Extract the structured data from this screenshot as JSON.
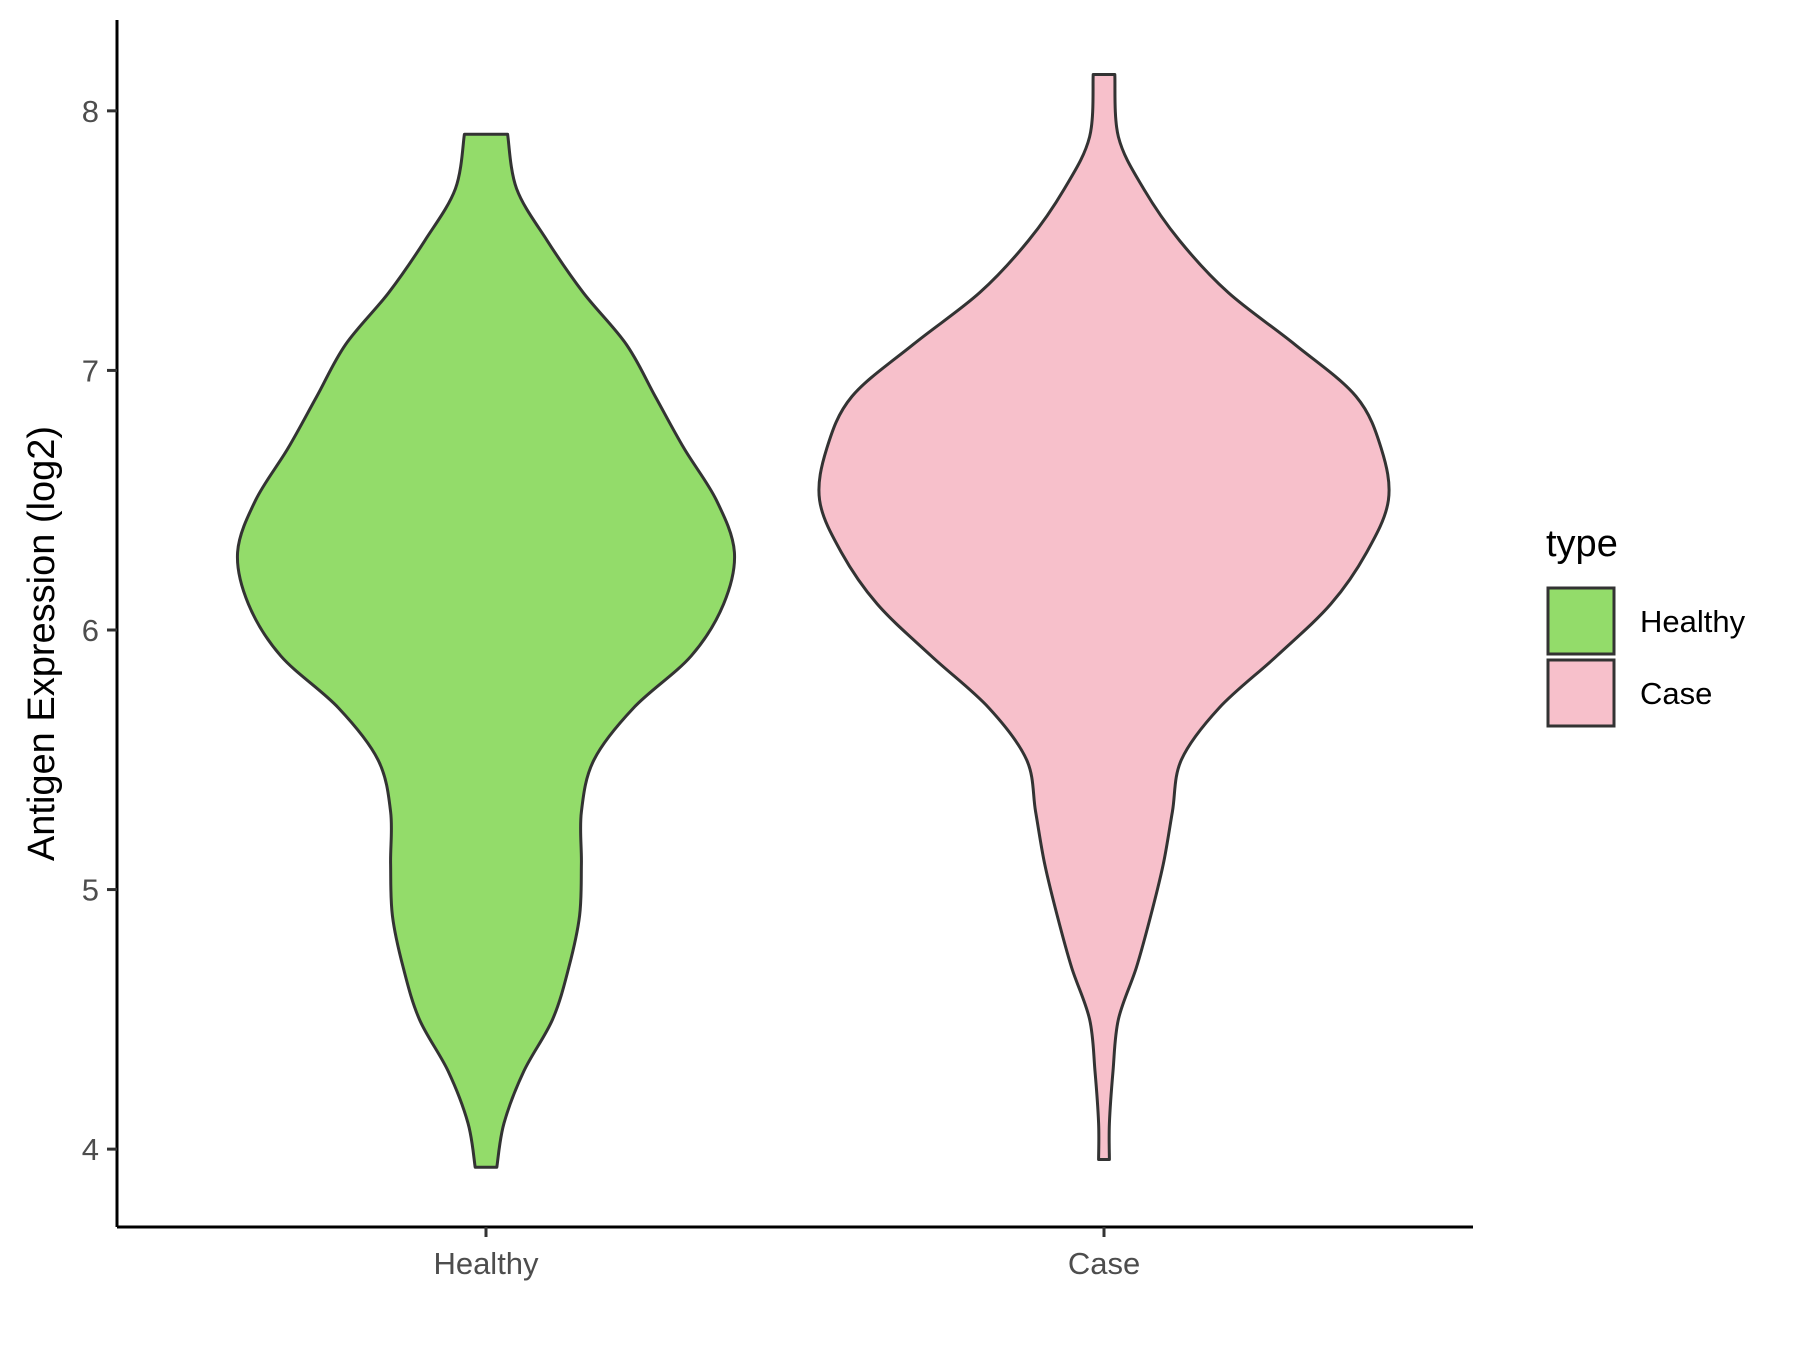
{
  "chart_data": {
    "type": "violin",
    "title": "",
    "xlabel": "",
    "ylabel": "Antigen Expression (log2)",
    "ylim": [
      3.7,
      8.35
    ],
    "yticks": [
      4,
      5,
      6,
      7,
      8
    ],
    "categories": [
      "Healthy",
      "Case"
    ],
    "grid": false,
    "legend": {
      "title": "type",
      "placement": "right",
      "entries": [
        "Healthy",
        "Case"
      ]
    },
    "colors": {
      "Healthy": "#93dc6a",
      "Case": "#f7c0cb",
      "outline": "#333333"
    },
    "series": [
      {
        "name": "Healthy",
        "min": 3.93,
        "max": 7.91,
        "density_profile": [
          [
            3.93,
            0.06
          ],
          [
            4.1,
            0.1
          ],
          [
            4.3,
            0.21
          ],
          [
            4.5,
            0.37
          ],
          [
            4.7,
            0.46
          ],
          [
            4.9,
            0.52
          ],
          [
            5.1,
            0.53
          ],
          [
            5.3,
            0.53
          ],
          [
            5.5,
            0.6
          ],
          [
            5.7,
            0.82
          ],
          [
            5.9,
            1.14
          ],
          [
            6.1,
            1.32
          ],
          [
            6.3,
            1.38
          ],
          [
            6.5,
            1.28
          ],
          [
            6.7,
            1.1
          ],
          [
            6.9,
            0.94
          ],
          [
            7.1,
            0.78
          ],
          [
            7.3,
            0.54
          ],
          [
            7.5,
            0.34
          ],
          [
            7.7,
            0.17
          ],
          [
            7.91,
            0.12
          ]
        ]
      },
      {
        "name": "Case",
        "min": 3.96,
        "max": 8.14,
        "density_profile": [
          [
            3.96,
            0.03
          ],
          [
            4.1,
            0.03
          ],
          [
            4.3,
            0.05
          ],
          [
            4.5,
            0.08
          ],
          [
            4.7,
            0.18
          ],
          [
            4.9,
            0.26
          ],
          [
            5.1,
            0.33
          ],
          [
            5.3,
            0.38
          ],
          [
            5.5,
            0.43
          ],
          [
            5.7,
            0.64
          ],
          [
            5.9,
            0.96
          ],
          [
            6.1,
            1.26
          ],
          [
            6.3,
            1.46
          ],
          [
            6.5,
            1.58
          ],
          [
            6.7,
            1.54
          ],
          [
            6.9,
            1.4
          ],
          [
            7.1,
            1.06
          ],
          [
            7.3,
            0.69
          ],
          [
            7.5,
            0.42
          ],
          [
            7.7,
            0.22
          ],
          [
            7.9,
            0.08
          ],
          [
            8.14,
            0.06
          ]
        ]
      }
    ]
  }
}
